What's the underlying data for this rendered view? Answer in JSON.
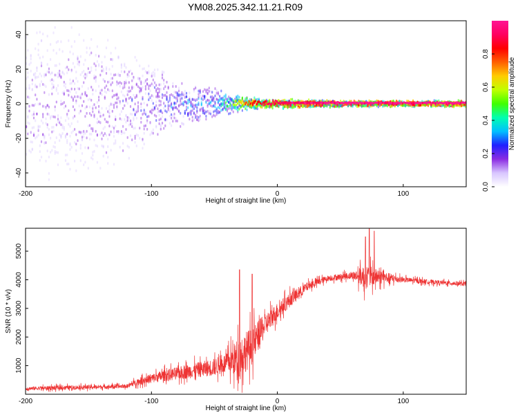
{
  "figure": {
    "title": "YM08.2025.342.11.21.R09"
  },
  "chart_data": [
    {
      "id": "spectrogram",
      "type": "heatmap",
      "xlabel": "Height of straight line (km)",
      "ylabel": "Frequency (Hz)",
      "xlim": [
        -200,
        150
      ],
      "ylim": [
        -48,
        48
      ],
      "xticks": [
        -200,
        -100,
        0,
        100
      ],
      "yticks": [
        40,
        20,
        0,
        -20,
        -40
      ],
      "description_series": [
        {
          "x": -200,
          "spread_hz": 48,
          "intensity": 0.15
        },
        {
          "x": -150,
          "spread_hz": 48,
          "intensity": 0.18
        },
        {
          "x": -110,
          "spread_hz": 30,
          "intensity": 0.2
        },
        {
          "x": -80,
          "spread_hz": 15,
          "intensity": 0.28
        },
        {
          "x": -50,
          "spread_hz": 10,
          "intensity": 0.32
        },
        {
          "x": -35,
          "spread_hz": 6,
          "intensity": 0.55
        },
        {
          "x": -15,
          "spread_hz": 3,
          "intensity": 0.85
        },
        {
          "x": 0,
          "spread_hz": 3,
          "intensity": 0.9
        },
        {
          "x": 50,
          "spread_hz": 2,
          "intensity": 0.95
        },
        {
          "x": 150,
          "spread_hz": 2,
          "intensity": 0.95
        }
      ],
      "ridge_frequency_hz": 0.5
    },
    {
      "id": "colorbar",
      "label": "Normalized spectral amplitude",
      "range": [
        0.0,
        1.0
      ],
      "ticks": [
        "0.0",
        "0.2",
        "0.4",
        "0.6",
        "0.8"
      ],
      "colormap": [
        "#ffffff",
        "#d8c6ff",
        "#8a2be2",
        "#2020ff",
        "#00bfff",
        "#00ffb0",
        "#40ff00",
        "#c0ff00",
        "#ffcc00",
        "#ff6000",
        "#ff0000",
        "#ff0060",
        "#ff1493"
      ]
    },
    {
      "id": "snr",
      "type": "line",
      "xlabel": "Height of straight line (km)",
      "ylabel": "SNR (10 * v/v)",
      "xlim": [
        -200,
        150
      ],
      "ylim": [
        0,
        5800
      ],
      "xticks": [
        -200,
        -100,
        0,
        100
      ],
      "yticks": [
        5000,
        4000,
        3000,
        2000,
        1000
      ],
      "color": "#ee3333",
      "envelope": [
        {
          "x": -200,
          "mean": 200,
          "amp": 120
        },
        {
          "x": -180,
          "mean": 220,
          "amp": 150
        },
        {
          "x": -150,
          "mean": 250,
          "amp": 150
        },
        {
          "x": -120,
          "mean": 280,
          "amp": 130
        },
        {
          "x": -110,
          "mean": 450,
          "amp": 250
        },
        {
          "x": -90,
          "mean": 650,
          "amp": 400
        },
        {
          "x": -70,
          "mean": 800,
          "amp": 500
        },
        {
          "x": -50,
          "mean": 950,
          "amp": 600
        },
        {
          "x": -40,
          "mean": 1100,
          "amp": 700
        },
        {
          "x": -30,
          "mean": 1300,
          "amp": 1500
        },
        {
          "x": -20,
          "mean": 1700,
          "amp": 1300
        },
        {
          "x": -10,
          "mean": 2400,
          "amp": 800
        },
        {
          "x": 0,
          "mean": 2900,
          "amp": 600
        },
        {
          "x": 10,
          "mean": 3300,
          "amp": 500
        },
        {
          "x": 25,
          "mean": 3800,
          "amp": 300
        },
        {
          "x": 40,
          "mean": 4050,
          "amp": 200
        },
        {
          "x": 60,
          "mean": 4150,
          "amp": 250
        },
        {
          "x": 70,
          "mean": 4100,
          "amp": 900
        },
        {
          "x": 80,
          "mean": 4100,
          "amp": 500
        },
        {
          "x": 100,
          "mean": 4000,
          "amp": 180
        },
        {
          "x": 130,
          "mean": 3900,
          "amp": 150
        },
        {
          "x": 150,
          "mean": 3850,
          "amp": 150
        }
      ],
      "peaks": [
        {
          "x": -30,
          "y": 4350
        },
        {
          "x": -20,
          "y": 4200
        },
        {
          "x": 70,
          "y": 5500
        },
        {
          "x": 73,
          "y": 5800
        },
        {
          "x": 77,
          "y": 5700
        }
      ]
    }
  ]
}
